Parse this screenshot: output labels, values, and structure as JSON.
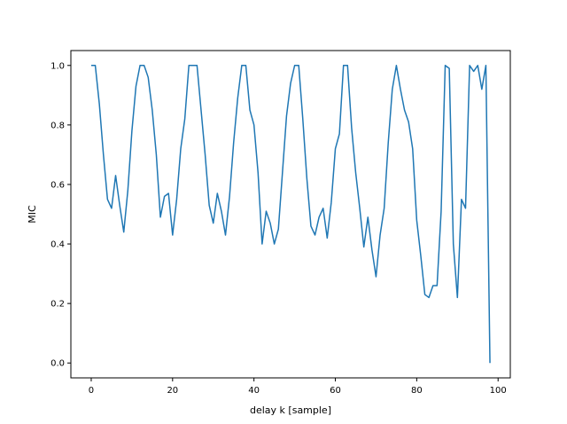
{
  "chart_data": {
    "type": "line",
    "title": "",
    "xlabel": "delay k [sample]",
    "ylabel": "MIC",
    "xlim": [
      -5,
      103
    ],
    "ylim": [
      -0.05,
      1.05
    ],
    "xticks": [
      0,
      20,
      40,
      60,
      80,
      100
    ],
    "yticks": [
      0.0,
      0.2,
      0.4,
      0.6,
      0.8,
      1.0
    ],
    "xtick_labels": [
      "0",
      "20",
      "40",
      "60",
      "80",
      "100"
    ],
    "ytick_labels": [
      "0.0",
      "0.2",
      "0.4",
      "0.6",
      "0.8",
      "1.0"
    ],
    "grid": false,
    "line_color": "#1f77b4",
    "series": [
      {
        "x": [
          0,
          1,
          2,
          3,
          4,
          5,
          6,
          7,
          8,
          9,
          10,
          11,
          12,
          13,
          14,
          15,
          16,
          17,
          18,
          19,
          20,
          21,
          22,
          23,
          24,
          25,
          26,
          27,
          28,
          29,
          30,
          31,
          32,
          33,
          34,
          35,
          36,
          37,
          38,
          39,
          40,
          41,
          42,
          43,
          44,
          45,
          46,
          47,
          48,
          49,
          50,
          51,
          52,
          53,
          54,
          55,
          56,
          57,
          58,
          59,
          60,
          61,
          62,
          63,
          64,
          65,
          66,
          67,
          68,
          69,
          70,
          71,
          72,
          73,
          74,
          75,
          76,
          77,
          78,
          79,
          80,
          81,
          82,
          83,
          84,
          85,
          86,
          87,
          88,
          89,
          90,
          91,
          92,
          93,
          94,
          95,
          96,
          97,
          98
        ],
        "values": [
          1.0,
          1.0,
          0.87,
          0.7,
          0.55,
          0.52,
          0.63,
          0.53,
          0.44,
          0.58,
          0.78,
          0.93,
          1.0,
          1.0,
          0.96,
          0.85,
          0.7,
          0.49,
          0.56,
          0.57,
          0.43,
          0.55,
          0.72,
          0.82,
          1.0,
          1.0,
          1.0,
          0.85,
          0.7,
          0.53,
          0.47,
          0.57,
          0.51,
          0.43,
          0.56,
          0.74,
          0.89,
          1.0,
          1.0,
          0.85,
          0.8,
          0.64,
          0.4,
          0.51,
          0.47,
          0.4,
          0.45,
          0.64,
          0.83,
          0.94,
          1.0,
          1.0,
          0.82,
          0.62,
          0.46,
          0.43,
          0.49,
          0.52,
          0.42,
          0.54,
          0.72,
          0.77,
          1.0,
          1.0,
          0.79,
          0.64,
          0.52,
          0.39,
          0.49,
          0.38,
          0.29,
          0.43,
          0.52,
          0.74,
          0.92,
          1.0,
          0.92,
          0.85,
          0.81,
          0.72,
          0.48,
          0.36,
          0.23,
          0.22,
          0.26,
          0.26,
          0.51,
          1.0,
          0.99,
          0.4,
          0.22,
          0.55,
          0.52,
          1.0,
          0.98,
          1.0,
          0.92,
          1.0,
          0.0
        ]
      }
    ]
  }
}
